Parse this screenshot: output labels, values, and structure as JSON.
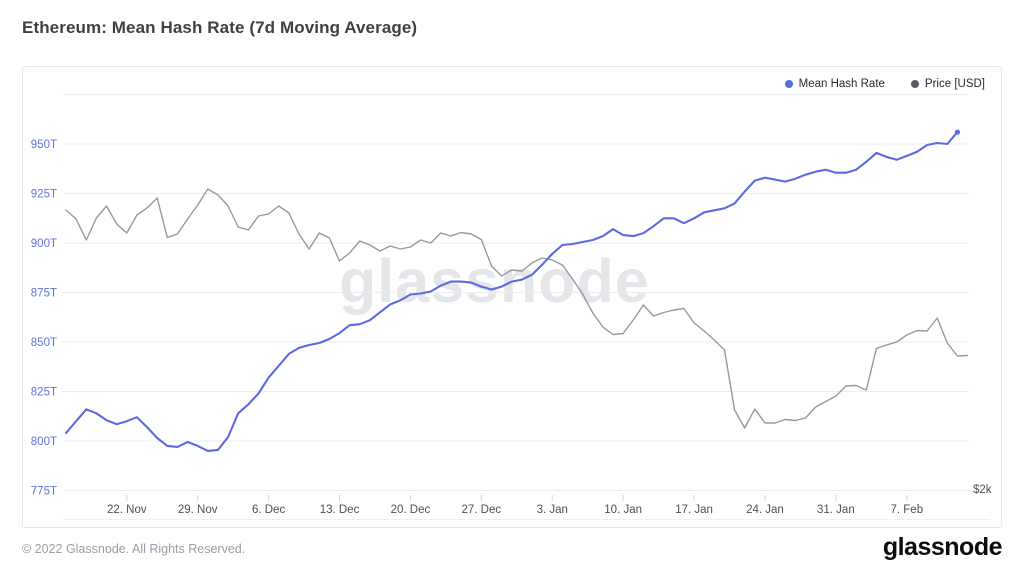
{
  "page": {
    "title": "Ethereum: Mean Hash Rate (7d Moving Average)"
  },
  "legend": {
    "items": [
      {
        "label": "Mean Hash Rate",
        "color": "#5b6be0"
      },
      {
        "label": "Price [USD]",
        "color": "#565a63"
      }
    ]
  },
  "watermark": "glassnode",
  "footer": {
    "copyright": "© 2022 Glassnode. All Rights Reserved.",
    "brand": "glassnode"
  },
  "chart_data": {
    "type": "line",
    "title": "Ethereum: Mean Hash Rate (7d Moving Average)",
    "grid": true,
    "legend_position": "top-right",
    "x_axis": {
      "start_date": "16. Nov",
      "interval": "1d",
      "tick_labels": [
        "22. Nov",
        "29. Nov",
        "6. Dec",
        "13. Dec",
        "20. Dec",
        "27. Dec",
        "3. Jan",
        "10. Jan",
        "17. Jan",
        "24. Jan",
        "31. Jan",
        "7. Feb"
      ],
      "tick_day_indices": [
        6,
        13,
        20,
        27,
        34,
        41,
        48,
        55,
        62,
        69,
        76,
        83
      ]
    },
    "y_left_axis": {
      "unit": "T",
      "color": "#6273dc",
      "range": [
        775,
        975
      ],
      "grid_values": [
        975,
        950,
        925,
        900,
        875,
        850,
        825,
        800,
        775
      ],
      "ticks": [
        {
          "value": 950,
          "label": "950T"
        },
        {
          "value": 925,
          "label": "925T"
        },
        {
          "value": 900,
          "label": "900T"
        },
        {
          "value": 875,
          "label": "875T"
        },
        {
          "value": 850,
          "label": "850T"
        },
        {
          "value": 825,
          "label": "825T"
        },
        {
          "value": 800,
          "label": "800T"
        },
        {
          "value": 775,
          "label": "775T"
        }
      ]
    },
    "y_right_axis": {
      "unit": "USD",
      "color": "#52525b",
      "range": [
        2000,
        5170
      ],
      "visible_tick": {
        "value": 2000,
        "label": "$2k"
      }
    },
    "series": [
      {
        "name": "Mean Hash Rate",
        "axis": "left",
        "unit": "terahash",
        "color": "#5b6be0",
        "stroke_width": 2.1,
        "end_marker": true,
        "values": [
          804,
          810,
          816,
          814,
          810.5,
          808.5,
          810,
          812,
          807,
          801.5,
          797.5,
          797,
          799.5,
          797.5,
          795,
          795.5,
          802,
          814,
          818.5,
          824,
          832,
          838,
          844,
          847,
          848.5,
          849.5,
          851.5,
          854.5,
          858.5,
          859,
          861,
          865,
          869,
          871,
          874,
          874.5,
          875.5,
          878.5,
          880.5,
          880.5,
          880,
          878,
          876.5,
          878,
          880.5,
          881.5,
          884,
          889,
          894.5,
          899,
          899.5,
          900.5,
          901.5,
          903.5,
          907,
          904,
          903.5,
          905,
          908.5,
          912.5,
          912.5,
          910,
          912.5,
          915.5,
          916.5,
          917.5,
          920,
          926,
          931.5,
          933,
          932,
          931,
          932.5,
          934.5,
          936,
          937,
          935.5,
          935.5,
          937,
          941,
          945.5,
          943.5,
          942,
          944,
          946,
          949.5,
          950.5,
          950,
          956
        ]
      },
      {
        "name": "Price [USD]",
        "axis": "right",
        "unit": "USD",
        "color": "#97999e",
        "stroke_width": 1.4,
        "end_marker": false,
        "values": [
          4240,
          4168,
          4000,
          4176,
          4272,
          4128,
          4056,
          4200,
          4256,
          4336,
          4020,
          4048,
          4168,
          4280,
          4408,
          4360,
          4272,
          4104,
          4080,
          4192,
          4208,
          4272,
          4216,
          4048,
          3928,
          4056,
          4016,
          3832,
          3896,
          3992,
          3960,
          3912,
          3952,
          3928,
          3944,
          4000,
          3976,
          4056,
          4032,
          4060,
          4048,
          4004,
          3792,
          3712,
          3760,
          3752,
          3816,
          3856,
          3840,
          3800,
          3688,
          3568,
          3416,
          3304,
          3244,
          3252,
          3360,
          3480,
          3392,
          3420,
          3440,
          3452,
          3336,
          3272,
          3200,
          3120,
          2640,
          2496,
          2648,
          2536,
          2536,
          2564,
          2556,
          2576,
          2664,
          2708,
          2752,
          2832,
          2836,
          2800,
          3132,
          3160,
          3184,
          3240,
          3276,
          3272,
          3376,
          3176,
          3072,
          3076
        ]
      }
    ]
  }
}
